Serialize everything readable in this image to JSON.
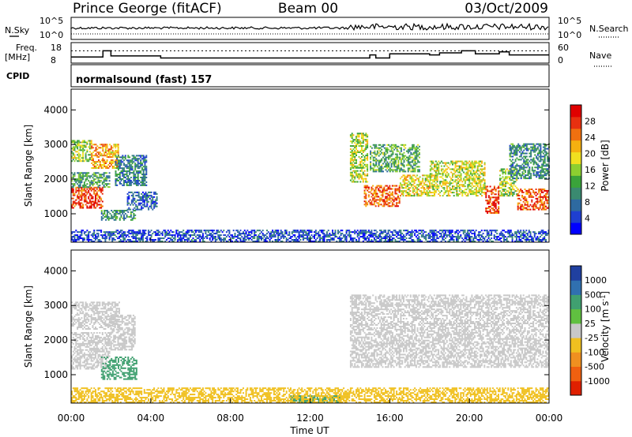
{
  "header": {
    "station": "Prince George (fitACF)",
    "beam": "Beam 00",
    "date": "03/Oct/2009"
  },
  "noise_panel": {
    "left_label": "N.Sky",
    "right_label": "N.Search",
    "left_ticks": [
      "10^5",
      "10^0"
    ],
    "right_ticks": [
      "10^5",
      "10^0"
    ]
  },
  "freq_panel": {
    "left_label_1": "Freq.",
    "left_label_2": "[MHz]",
    "right_label": "Nave",
    "left_ticks": [
      "18",
      "8"
    ],
    "right_ticks": [
      "60",
      "0"
    ],
    "freq_mhz_ylim": [
      8,
      18
    ],
    "nave_ylim": [
      0,
      60
    ],
    "nave_reference": 36
  },
  "cpid_panel": {
    "label": "CPID",
    "mode": "normalsound (fast) 157"
  },
  "time_axis": {
    "label": "Time UT",
    "ticks": [
      "00:00",
      "04:00",
      "08:00",
      "12:00",
      "16:00",
      "20:00",
      "00:00"
    ],
    "range_hours": [
      0,
      24
    ]
  },
  "chart_data": [
    {
      "type": "heatmap",
      "name": "power",
      "ylabel": "Slant Range [km]",
      "ylim": [
        180,
        4600
      ],
      "y_ticks": [
        "1000",
        "2000",
        "3000",
        "4000"
      ],
      "colorbar": {
        "label": "Power [dB]",
        "ticks": [
          "4",
          "8",
          "12",
          "16",
          "20",
          "24",
          "28"
        ],
        "colors": [
          "#0000ff",
          "#1f3fd0",
          "#2e6aa0",
          "#3a8a70",
          "#3aa33a",
          "#8ccf30",
          "#f0e020",
          "#f5b010",
          "#f07010",
          "#e83010",
          "#e00000"
        ]
      },
      "regions": [
        {
          "t0": 0.0,
          "t1": 1.6,
          "r0": 1150,
          "r1": 1750,
          "dB": 27
        },
        {
          "t0": 0.0,
          "t1": 1.9,
          "r0": 1750,
          "r1": 2200,
          "dB": 12
        },
        {
          "t0": 0.0,
          "t1": 1.0,
          "r0": 2500,
          "r1": 3100,
          "dB": 16
        },
        {
          "t0": 1.0,
          "t1": 2.4,
          "r0": 2300,
          "r1": 3000,
          "dB": 22
        },
        {
          "t0": 2.2,
          "t1": 3.8,
          "r0": 1800,
          "r1": 2700,
          "dB": 9
        },
        {
          "t0": 1.5,
          "t1": 3.2,
          "r0": 800,
          "r1": 1100,
          "dB": 11
        },
        {
          "t0": 2.8,
          "t1": 4.3,
          "r0": 1100,
          "r1": 1600,
          "dB": 7
        },
        {
          "t0": 14.0,
          "t1": 14.9,
          "r0": 1900,
          "r1": 3300,
          "dB": 17
        },
        {
          "t0": 14.7,
          "t1": 16.5,
          "r0": 1200,
          "r1": 1800,
          "dB": 25
        },
        {
          "t0": 16.5,
          "t1": 18.0,
          "r0": 1500,
          "r1": 2100,
          "dB": 19
        },
        {
          "t0": 15.0,
          "t1": 17.5,
          "r0": 2200,
          "r1": 3000,
          "dB": 13
        },
        {
          "t0": 18.0,
          "t1": 20.8,
          "r0": 1500,
          "r1": 2500,
          "dB": 18
        },
        {
          "t0": 20.8,
          "t1": 21.5,
          "r0": 1000,
          "r1": 1800,
          "dB": 27
        },
        {
          "t0": 21.5,
          "t1": 22.4,
          "r0": 1500,
          "r1": 2300,
          "dB": 16
        },
        {
          "t0": 22.4,
          "t1": 24.0,
          "r0": 1100,
          "r1": 1700,
          "dB": 26
        },
        {
          "t0": 22.0,
          "t1": 24.0,
          "r0": 2000,
          "r1": 3000,
          "dB": 10
        },
        {
          "t0": 0.0,
          "t1": 24.0,
          "r0": 180,
          "r1": 500,
          "dB": 6
        }
      ]
    },
    {
      "type": "heatmap",
      "name": "velocity",
      "ylabel": "Slant Range [km]",
      "ylim": [
        180,
        4600
      ],
      "y_ticks": [
        "1000",
        "2000",
        "3000",
        "4000"
      ],
      "colorbar": {
        "label": "Velocity [m s^-1]",
        "ticks": [
          "1000",
          "500",
          "100",
          "25",
          "-25",
          "-100",
          "-500",
          "-1000"
        ],
        "colors": [
          "#2040a0",
          "#3070b0",
          "#40a070",
          "#60c040",
          "#c8c8c8",
          "#f0c020",
          "#f09020",
          "#f06010",
          "#e02000"
        ]
      },
      "regions": [
        {
          "t0": 0.0,
          "t1": 1.9,
          "r0": 1150,
          "r1": 2200,
          "v": 0
        },
        {
          "t0": 0.0,
          "t1": 2.4,
          "r0": 2300,
          "r1": 3100,
          "v": 0
        },
        {
          "t0": 1.9,
          "t1": 3.2,
          "r0": 1700,
          "r1": 2700,
          "v": 0
        },
        {
          "t0": 1.5,
          "t1": 3.3,
          "r0": 850,
          "r1": 1500,
          "v": 80
        },
        {
          "t0": 14.0,
          "t1": 24.0,
          "r0": 1200,
          "r1": 3300,
          "v": 0
        },
        {
          "t0": 11.0,
          "t1": 13.5,
          "r0": 180,
          "r1": 400,
          "v": 80
        },
        {
          "t0": 0.0,
          "t1": 24.0,
          "r0": 180,
          "r1": 600,
          "v": -60
        }
      ]
    }
  ]
}
